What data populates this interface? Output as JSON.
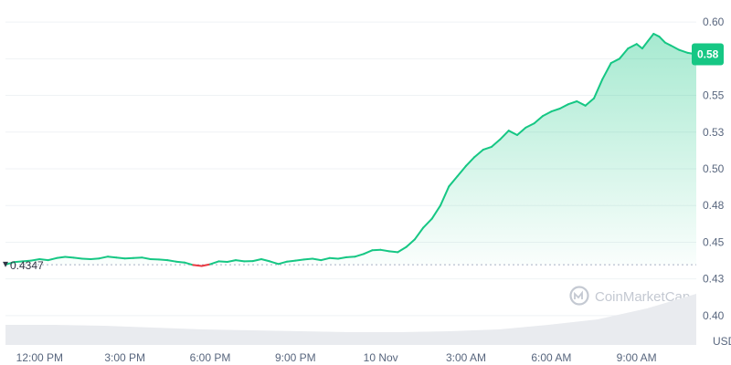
{
  "chart_data": {
    "type": "area",
    "watermark": "CoinMarketCap",
    "y_unit": "USD",
    "y_ticks": [
      "0.60",
      "0.58",
      "0.55",
      "0.53",
      "0.50",
      "0.48",
      "0.45",
      "0.43",
      "0.40"
    ],
    "y_tick_values": [
      0.6,
      0.575,
      0.55,
      0.525,
      0.5,
      0.475,
      0.45,
      0.425,
      0.4
    ],
    "ylim": [
      0.39,
      0.61
    ],
    "x_ticks": [
      "12:00 PM",
      "3:00 PM",
      "6:00 PM",
      "9:00 PM",
      "10 Nov",
      "3:00 AM",
      "6:00 AM",
      "9:00 AM"
    ],
    "x_tick_hours": [
      0,
      3,
      6,
      9,
      12,
      15,
      18,
      21
    ],
    "xlim_hours": [
      -1.2,
      23.1
    ],
    "reference_price": 0.4347,
    "reference_label": "0.4347",
    "current_price_label": "0.58",
    "colors": {
      "up": "#16c784",
      "down": "#ea3943",
      "label_bg": "#16c784"
    },
    "series": [
      {
        "hours": [
          -1.2,
          -0.9,
          -0.6,
          -0.3,
          0.0,
          0.3,
          0.6,
          0.9,
          1.2,
          1.5,
          1.8,
          2.1,
          2.4,
          2.7,
          3.0,
          3.3,
          3.6,
          3.9,
          4.2,
          4.5,
          4.8,
          5.1,
          5.4,
          5.7,
          6.0,
          6.3,
          6.6,
          6.9,
          7.2,
          7.5,
          7.8,
          8.1,
          8.4,
          8.7,
          9.0,
          9.3,
          9.6,
          9.9,
          10.2,
          10.5,
          10.8,
          11.1,
          11.4,
          11.7,
          12.0,
          12.3,
          12.6,
          12.9,
          13.2,
          13.5,
          13.8,
          14.1,
          14.4,
          14.7,
          15.0,
          15.3,
          15.6,
          15.9,
          16.2,
          16.5,
          16.8,
          17.1,
          17.4,
          17.7,
          18.0,
          18.3,
          18.6,
          18.9,
          19.2,
          19.5,
          19.8,
          20.1,
          20.4,
          20.7,
          21.0,
          21.2,
          21.4,
          21.6,
          21.8,
          22.0,
          22.2,
          22.5,
          22.8,
          23.1
        ],
        "values": [
          0.4347,
          0.4365,
          0.437,
          0.4375,
          0.4385,
          0.4378,
          0.4392,
          0.44,
          0.4395,
          0.4388,
          0.4385,
          0.439,
          0.4402,
          0.4396,
          0.439,
          0.4392,
          0.4396,
          0.4385,
          0.4382,
          0.4378,
          0.4368,
          0.4362,
          0.4345,
          0.4338,
          0.435,
          0.437,
          0.4366,
          0.4378,
          0.437,
          0.4372,
          0.4385,
          0.437,
          0.4352,
          0.4368,
          0.4375,
          0.4382,
          0.4388,
          0.4378,
          0.4392,
          0.4388,
          0.4398,
          0.4402,
          0.442,
          0.4445,
          0.4448,
          0.4438,
          0.4432,
          0.4468,
          0.452,
          0.46,
          0.466,
          0.475,
          0.488,
          0.495,
          0.502,
          0.508,
          0.513,
          0.515,
          0.52,
          0.526,
          0.523,
          0.528,
          0.531,
          0.536,
          0.539,
          0.541,
          0.544,
          0.546,
          0.543,
          0.548,
          0.561,
          0.572,
          0.575,
          0.582,
          0.585,
          0.582,
          0.587,
          0.592,
          0.59,
          0.586,
          0.584,
          0.581,
          0.579,
          0.578
        ]
      }
    ]
  }
}
